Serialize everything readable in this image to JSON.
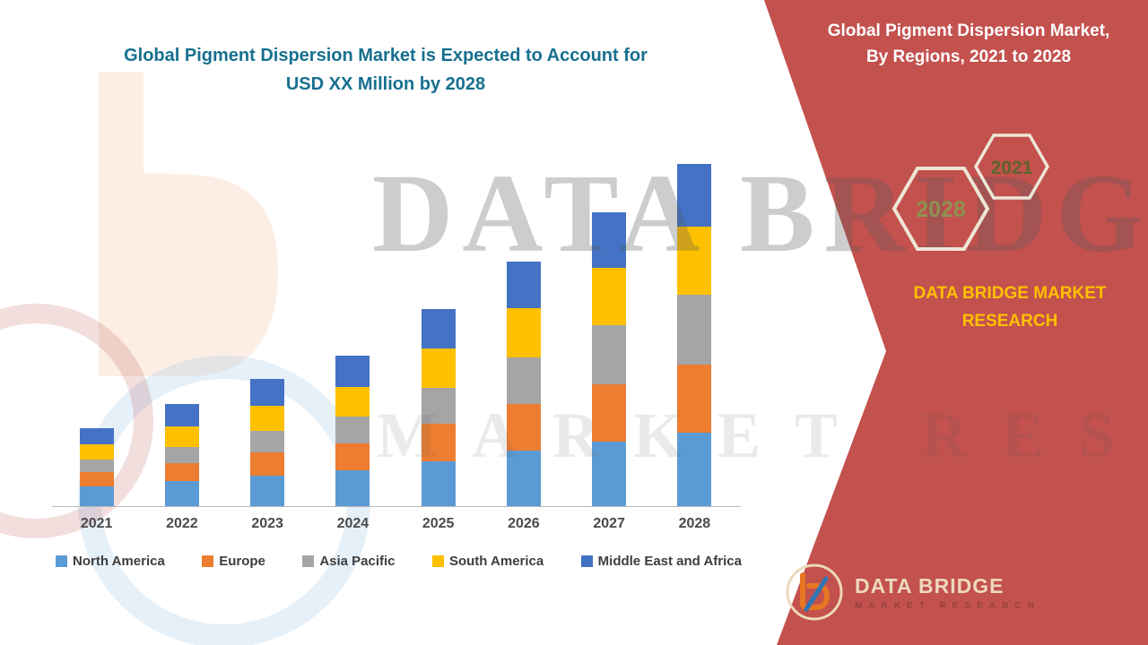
{
  "page": {
    "title_color": "#17708F",
    "panel_color": "#C3514E"
  },
  "left": {
    "title_line1": "Global Pigment Dispersion Market is Expected to Account for",
    "title_line2": "USD XX Million by 2028"
  },
  "right_panel": {
    "title_line1": "Global Pigment Dispersion Market,",
    "title_line2": "By Regions, 2021 to 2028",
    "hexagons": [
      {
        "label": "2028",
        "label_color": "#8F9150"
      },
      {
        "label": "2021",
        "label_color": "#5E652E"
      }
    ],
    "brand_line1": "DATA BRIDGE MARKET",
    "brand_line2": "RESEARCH",
    "brand_color": "#FFC000"
  },
  "watermark": {
    "line1": "DATA BRIDGE",
    "line2": "MARKET RESEARCH"
  },
  "footer_logo": {
    "brand": "DATA BRIDGE",
    "sub": "MARKET RESEARCH"
  },
  "chart_data": {
    "type": "bar",
    "stacked": true,
    "title": "Global Pigment Dispersion Market, By Regions, 2021 to 2028",
    "xlabel": "",
    "ylabel": "",
    "value_note": "Y-axis not labeled on chart (USD XX Million); values are relative estimated heights",
    "grid": false,
    "legend_position": "bottom",
    "categories": [
      "2021",
      "2022",
      "2023",
      "2024",
      "2025",
      "2026",
      "2027",
      "2028"
    ],
    "series": [
      {
        "name": "North America",
        "color": "#5B9BD5",
        "values": [
          22,
          28,
          34,
          40,
          50,
          62,
          72,
          82
        ]
      },
      {
        "name": "Europe",
        "color": "#ED7D31",
        "values": [
          16,
          20,
          26,
          30,
          42,
          52,
          64,
          76
        ]
      },
      {
        "name": "Asia Pacific",
        "color": "#A5A5A5",
        "values": [
          14,
          18,
          24,
          30,
          40,
          52,
          66,
          78
        ]
      },
      {
        "name": "South America",
        "color": "#FFC000",
        "values": [
          17,
          23,
          28,
          33,
          44,
          55,
          64,
          76
        ]
      },
      {
        "name": "Middle East and Africa",
        "color": "#4472C4",
        "values": [
          18,
          25,
          30,
          35,
          44,
          52,
          62,
          70
        ]
      }
    ],
    "totals": [
      87,
      114,
      142,
      168,
      220,
      273,
      328,
      382
    ],
    "pixels_per_unit": 1
  }
}
